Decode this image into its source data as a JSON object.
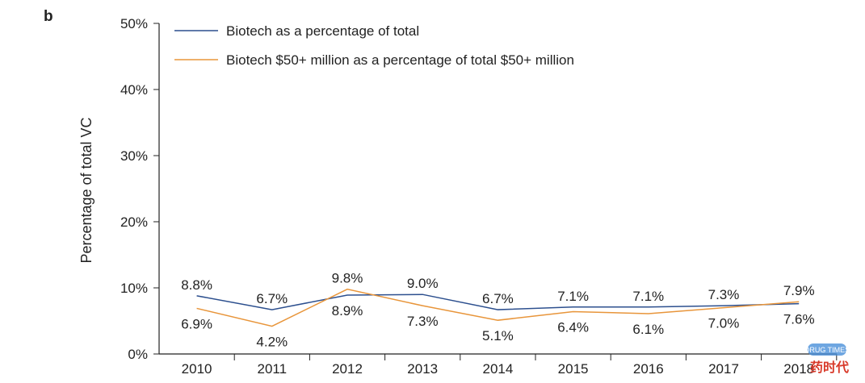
{
  "panel_label": "b",
  "watermark": "DRUG TIMES 药时代",
  "chart_data": {
    "type": "line",
    "title": "",
    "xlabel": "",
    "ylabel": "Percentage of total VC",
    "ylim": [
      0,
      50
    ],
    "yticks": [
      "0%",
      "10%",
      "20%",
      "30%",
      "40%",
      "50%"
    ],
    "categories": [
      "2010",
      "2011",
      "2012",
      "2013",
      "2014",
      "2015",
      "2016",
      "2017",
      "2018"
    ],
    "grid": false,
    "legend_position": "top",
    "series": [
      {
        "name": "Biotech as a percentage of total",
        "color": "#2c4f8e",
        "values": [
          8.8,
          6.7,
          8.9,
          9.0,
          6.7,
          7.1,
          7.1,
          7.3,
          7.6
        ],
        "labels": [
          "8.8%",
          "6.7%",
          "8.9%",
          "9.0%",
          "6.7%",
          "7.1%",
          "7.1%",
          "7.3%",
          "7.6%"
        ]
      },
      {
        "name": "Biotech $50+ million as a percentage of total $50+ million",
        "color": "#e8953a",
        "values": [
          6.9,
          4.2,
          9.8,
          7.3,
          5.1,
          6.4,
          6.1,
          7.0,
          7.9
        ],
        "labels": [
          "6.9%",
          "4.2%",
          "9.8%",
          "7.3%",
          "5.1%",
          "6.4%",
          "6.1%",
          "7.0%",
          "7.9%"
        ]
      }
    ]
  }
}
